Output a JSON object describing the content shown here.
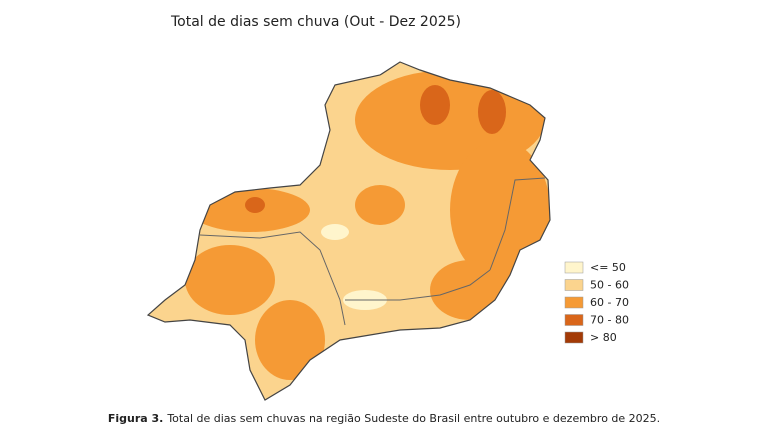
{
  "title": "Total de dias sem chuva (Out - Dez 2025)",
  "legend": [
    {
      "label": "<= 50",
      "color": "#fff5cc"
    },
    {
      "label": "50 - 60",
      "color": "#fbd48e"
    },
    {
      "label": "60 - 70",
      "color": "#f59a35"
    },
    {
      "label": "70 - 80",
      "color": "#d9661a"
    },
    {
      "label": "> 80",
      "color": "#a33a06"
    }
  ],
  "caption": {
    "label": "Figura 3.",
    "text": "Total de dias sem chuvas na região Sudeste do Brasil entre outubro e dezembro de 2025."
  }
}
